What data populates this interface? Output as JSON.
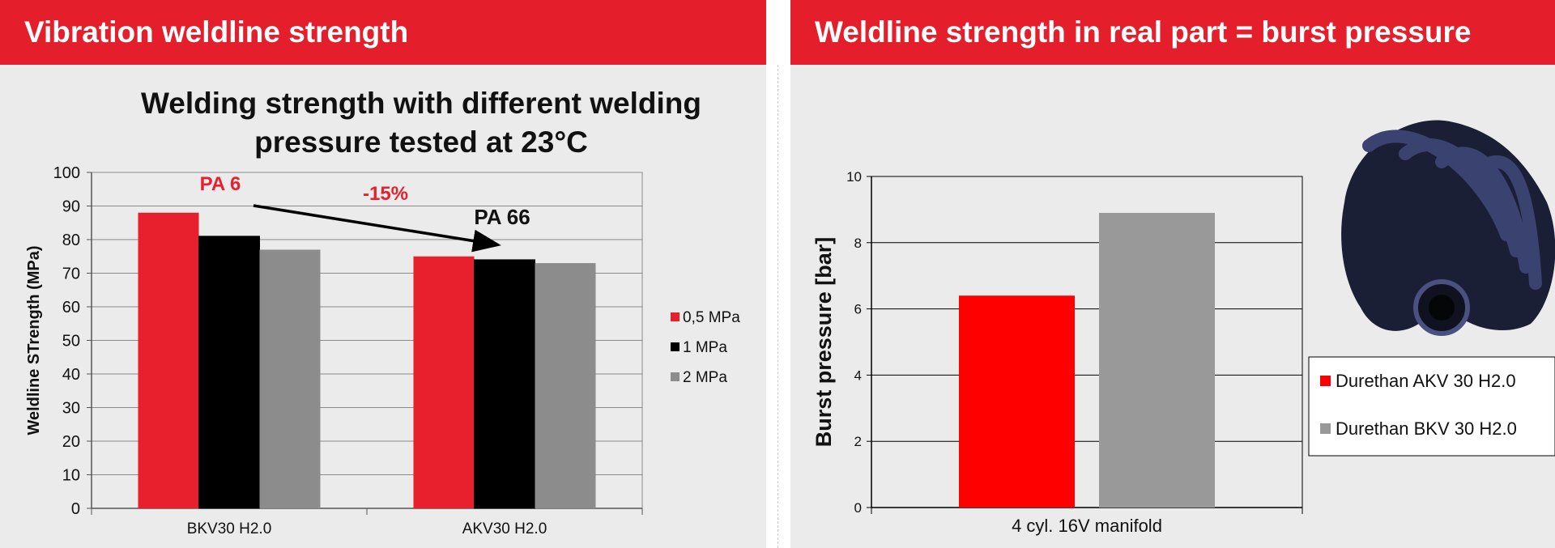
{
  "left_panel": {
    "header": "Vibration weldline strength"
  },
  "right_panel": {
    "header": "Weldline strength in real part = burst pressure",
    "image_alt": "intake manifold"
  },
  "colors": {
    "brand_red": "#e41e2b",
    "series_red": "#e8202e",
    "series_black": "#000000",
    "series_gray": "#8c8c8c",
    "akv_red": "#ff0000",
    "bkv_gray": "#999999"
  },
  "chart_data": [
    {
      "type": "bar",
      "title_lines": [
        "Welding strength with different welding",
        "pressure tested at 23°C"
      ],
      "categories": [
        "BKV30 H2.0",
        "AKV30 H2.0"
      ],
      "series": [
        {
          "name": "0,5 MPa",
          "values": [
            88,
            75
          ]
        },
        {
          "name": "1 MPa",
          "values": [
            81,
            74
          ]
        },
        {
          "name": "2 MPa",
          "values": [
            77,
            73
          ]
        }
      ],
      "ylabel": "Weldline STrength (MPa)",
      "ylim": [
        0,
        100
      ],
      "yticks": [
        0,
        10,
        20,
        30,
        40,
        50,
        60,
        70,
        80,
        90,
        100
      ],
      "grid": true,
      "legend": "right",
      "annotations": {
        "pa6": "PA 6",
        "pa66": "PA 66",
        "change": "-15%"
      }
    },
    {
      "type": "bar",
      "categories": [
        "4 cyl. 16V manifold"
      ],
      "series": [
        {
          "name": "Durethan AKV 30 H2.0",
          "values": [
            6.4
          ]
        },
        {
          "name": "Durethan BKV 30 H2.0",
          "values": [
            8.9
          ]
        }
      ],
      "ylabel": "Burst pressure [bar]",
      "ylim": [
        0,
        10
      ],
      "yticks": [
        0,
        2,
        4,
        6,
        8,
        10
      ],
      "grid": true,
      "legend": "right"
    }
  ]
}
